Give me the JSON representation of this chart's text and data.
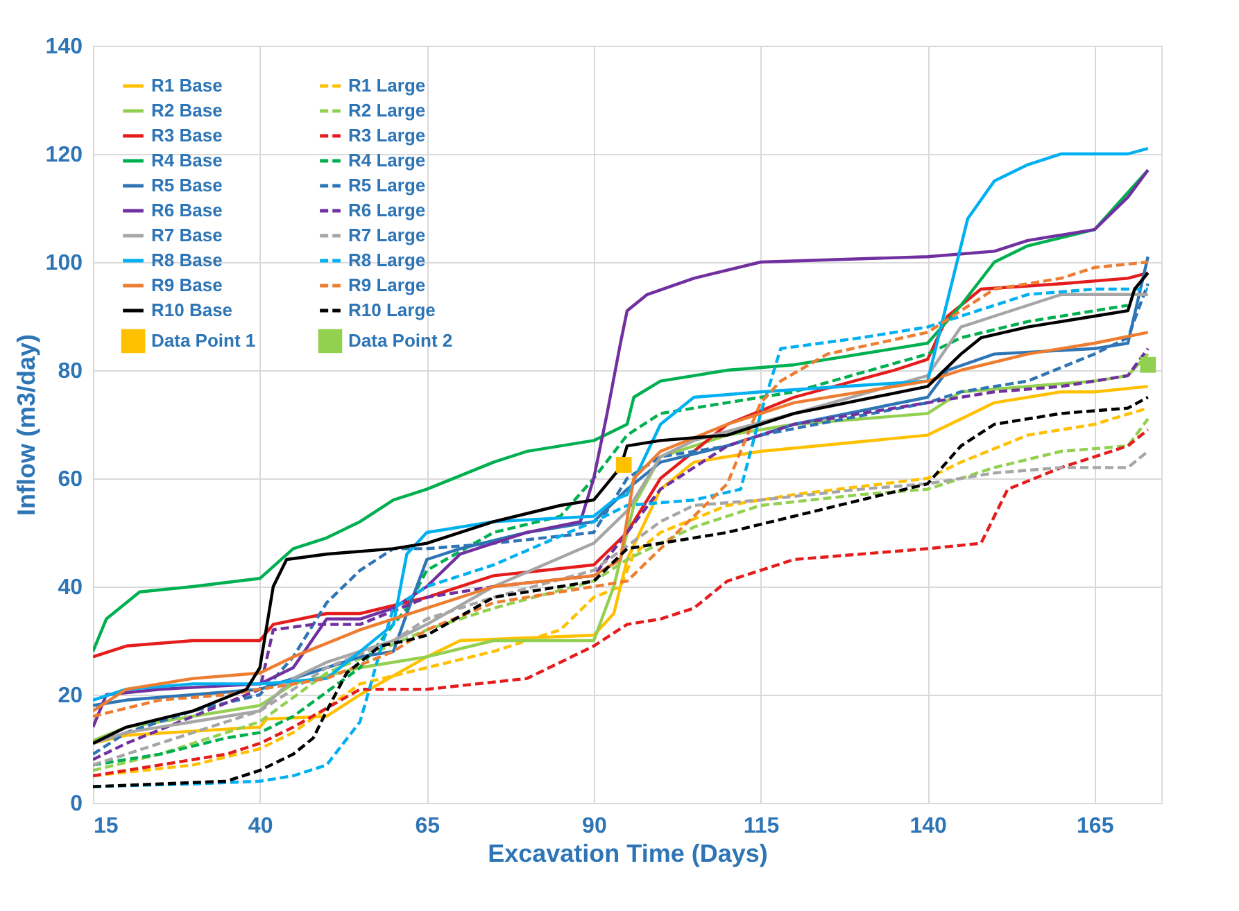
{
  "chart_data": {
    "type": "line",
    "xlabel": "Excavation Time (Days)",
    "ylabel": "Inflow (m3/day)",
    "xlim": [
      15,
      175
    ],
    "xticks": [
      15,
      40,
      65,
      90,
      115,
      140,
      165
    ],
    "ylim": [
      0,
      140
    ],
    "yticks": [
      0,
      20,
      40,
      60,
      80,
      100,
      120,
      140
    ],
    "grid": true,
    "legend": "top left",
    "series": [
      {
        "name": "R1 Base",
        "color": "#ffc000",
        "line_style": "solid",
        "x": [
          15,
          20,
          40,
          41,
          50,
          55,
          65,
          70,
          90,
          93,
          95,
          100,
          105,
          115,
          140,
          145,
          150,
          160,
          165,
          173
        ],
        "values": [
          11,
          12.5,
          14,
          15.5,
          16,
          20,
          27,
          30,
          31,
          35,
          45,
          58,
          63,
          65,
          68,
          71,
          74,
          76,
          76,
          77
        ]
      },
      {
        "name": "R1 Large",
        "color": "#ffc000",
        "line_style": "dashed",
        "x": [
          15,
          30,
          40,
          45,
          55,
          65,
          75,
          85,
          90,
          94,
          96,
          100,
          110,
          120,
          140,
          145,
          155,
          165,
          173
        ],
        "values": [
          5,
          7,
          10,
          13,
          22,
          25,
          28,
          32,
          38,
          40,
          46,
          50,
          55,
          57,
          60,
          63,
          68,
          70,
          73
        ]
      },
      {
        "name": "R2 Base",
        "color": "#92d050",
        "line_style": "solid",
        "x": [
          15,
          20,
          30,
          40,
          45,
          55,
          65,
          75,
          90,
          93,
          96,
          100,
          110,
          120,
          140,
          145,
          155,
          165,
          170,
          173
        ],
        "values": [
          11.5,
          14,
          16,
          18,
          22,
          25,
          27,
          30,
          30,
          40,
          55,
          64,
          68,
          70,
          72,
          76,
          77,
          78,
          79,
          83
        ]
      },
      {
        "name": "R2 Large",
        "color": "#92d050",
        "line_style": "dashed",
        "x": [
          15,
          25,
          40,
          50,
          65,
          75,
          90,
          95,
          105,
          115,
          130,
          140,
          150,
          160,
          170,
          173
        ],
        "values": [
          6,
          9,
          15,
          24,
          32,
          36,
          41,
          45,
          51,
          55,
          57,
          58,
          62,
          65,
          66,
          71
        ]
      },
      {
        "name": "R3 Base",
        "color": "#e41c1c",
        "line_style": "solid",
        "x": [
          15,
          20,
          30,
          40,
          42,
          50,
          55,
          65,
          75,
          90,
          95,
          100,
          110,
          120,
          135,
          140,
          143,
          148,
          160,
          170,
          173
        ],
        "values": [
          27,
          29,
          30,
          30,
          33,
          35,
          35,
          38,
          42,
          44,
          50,
          60,
          70,
          75,
          80,
          82,
          90,
          95,
          96,
          97,
          98
        ]
      },
      {
        "name": "R3 Large",
        "color": "#e41c1c",
        "line_style": "dashed",
        "x": [
          15,
          25,
          35,
          40,
          45,
          55,
          65,
          80,
          90,
          95,
          100,
          105,
          110,
          120,
          140,
          148,
          152,
          160,
          170,
          173
        ],
        "values": [
          5,
          7,
          9,
          11,
          14,
          21,
          21,
          23,
          29,
          33,
          34,
          36,
          41,
          45,
          47,
          48,
          58,
          62,
          66,
          69
        ]
      },
      {
        "name": "R4 Base",
        "color": "#00b050",
        "line_style": "solid",
        "x": [
          15,
          17,
          22,
          30,
          40,
          45,
          50,
          55,
          60,
          65,
          75,
          80,
          90,
          95,
          96,
          100,
          110,
          120,
          140,
          145,
          150,
          155,
          165,
          173
        ],
        "values": [
          28,
          34,
          39,
          40,
          41.5,
          47,
          49,
          52,
          56,
          58,
          63,
          65,
          67,
          70,
          75,
          78,
          80,
          81,
          85,
          92,
          100,
          103,
          106,
          117
        ]
      },
      {
        "name": "R4 Large",
        "color": "#00b050",
        "line_style": "dashed",
        "x": [
          15,
          25,
          35,
          40,
          45,
          55,
          60,
          62,
          65,
          75,
          85,
          90,
          95,
          100,
          110,
          120,
          140,
          145,
          155,
          165,
          170
        ],
        "values": [
          7,
          9,
          12,
          13,
          16,
          25,
          33,
          36,
          43,
          50,
          53,
          60,
          68,
          72,
          74,
          76,
          83,
          86,
          89,
          91,
          92
        ]
      },
      {
        "name": "R5 Base",
        "color": "#2e75b6",
        "line_style": "solid",
        "x": [
          15,
          20,
          30,
          40,
          45,
          55,
          60,
          62,
          65,
          70,
          80,
          90,
          95,
          100,
          110,
          120,
          140,
          143,
          150,
          165,
          170,
          173
        ],
        "values": [
          18,
          19,
          20,
          21,
          23,
          27,
          28,
          35,
          45,
          47,
          50,
          52,
          58,
          63,
          66,
          70,
          75,
          80,
          83,
          84,
          85,
          101
        ]
      },
      {
        "name": "R5 Large",
        "color": "#2e75b6",
        "line_style": "dashed",
        "x": [
          15,
          20,
          30,
          40,
          45,
          50,
          55,
          60,
          65,
          75,
          90,
          95,
          100,
          110,
          115,
          140,
          145,
          155,
          165,
          170,
          173
        ],
        "values": [
          9,
          13,
          17,
          20,
          27,
          37,
          43,
          47,
          47,
          48,
          50,
          60,
          64,
          66,
          68,
          74,
          76,
          78,
          83,
          86,
          96
        ]
      },
      {
        "name": "R6 Base",
        "color": "#7030a0",
        "line_style": "solid",
        "x": [
          15,
          17,
          25,
          40,
          45,
          50,
          55,
          60,
          65,
          70,
          80,
          88,
          90,
          92,
          94,
          95,
          98,
          105,
          115,
          140,
          150,
          155,
          165,
          170,
          173
        ],
        "values": [
          14,
          20,
          21,
          22,
          25,
          34,
          34,
          36,
          40,
          46,
          50,
          52,
          60,
          72,
          85,
          91,
          94,
          97,
          100,
          101,
          102,
          104,
          106,
          112,
          117
        ]
      },
      {
        "name": "R6 Large",
        "color": "#7030a0",
        "line_style": "dashed",
        "x": [
          15,
          20,
          30,
          40,
          42,
          48,
          55,
          65,
          75,
          90,
          95,
          100,
          110,
          120,
          140,
          150,
          160,
          165,
          170,
          173
        ],
        "values": [
          8,
          11,
          16,
          21,
          32,
          33,
          33,
          38,
          40,
          42,
          50,
          58,
          66,
          70,
          74,
          76,
          77,
          78,
          79,
          84
        ]
      },
      {
        "name": "R7 Base",
        "color": "#a6a6a6",
        "line_style": "solid",
        "x": [
          15,
          20,
          30,
          40,
          45,
          50,
          60,
          65,
          75,
          90,
          95,
          100,
          105,
          120,
          140,
          145,
          150,
          160,
          170,
          173
        ],
        "values": [
          11,
          13,
          15,
          17,
          23,
          26,
          30,
          33,
          40,
          48,
          54,
          64,
          67,
          72,
          79,
          88,
          90,
          94,
          94,
          94
        ]
      },
      {
        "name": "R7 Large",
        "color": "#a6a6a6",
        "line_style": "dashed",
        "x": [
          15,
          25,
          35,
          40,
          50,
          60,
          65,
          75,
          90,
          100,
          105,
          115,
          130,
          140,
          150,
          160,
          170,
          173
        ],
        "values": [
          7,
          11,
          15,
          17,
          25,
          30,
          34,
          38,
          43,
          52,
          55,
          56,
          58,
          59,
          61,
          62,
          62,
          65
        ]
      },
      {
        "name": "R8 Base",
        "color": "#00b0f0",
        "line_style": "solid",
        "x": [
          15,
          20,
          30,
          40,
          50,
          55,
          60,
          62,
          65,
          75,
          90,
          93,
          95,
          100,
          105,
          115,
          140,
          142,
          144,
          146,
          150,
          155,
          160,
          165,
          170,
          173
        ],
        "values": [
          19,
          21,
          22,
          22,
          23,
          28,
          33,
          46,
          50,
          52,
          53,
          56,
          57,
          70,
          75,
          76,
          78,
          88,
          98,
          108,
          115,
          118,
          120,
          120,
          120,
          121
        ]
      },
      {
        "name": "R8 Large",
        "color": "#00b0f0",
        "line_style": "dashed",
        "x": [
          15,
          30,
          40,
          45,
          50,
          55,
          58,
          60,
          65,
          75,
          90,
          95,
          105,
          112,
          115,
          118,
          130,
          140,
          145,
          155,
          165,
          173
        ],
        "values": [
          3,
          3.5,
          4,
          5,
          7,
          15,
          28,
          36,
          40,
          44,
          52,
          55,
          56,
          58,
          72,
          84,
          86,
          88,
          90,
          94,
          95,
          95
        ]
      },
      {
        "name": "R9 Base",
        "color": "#ed7d31",
        "line_style": "solid",
        "x": [
          15,
          20,
          30,
          40,
          45,
          55,
          65,
          75,
          90,
          94,
          96,
          100,
          110,
          120,
          140,
          145,
          155,
          165,
          173
        ],
        "values": [
          17,
          21,
          23,
          24,
          27,
          32,
          36,
          40,
          42,
          45,
          60,
          65,
          70,
          74,
          78,
          80,
          83,
          85,
          87
        ]
      },
      {
        "name": "R9 Large",
        "color": "#ed7d31",
        "line_style": "dashed",
        "x": [
          15,
          25,
          35,
          40,
          50,
          60,
          65,
          75,
          90,
          95,
          100,
          105,
          110,
          115,
          118,
          125,
          140,
          150,
          160,
          165,
          173
        ],
        "values": [
          16,
          19,
          20,
          21,
          23,
          28,
          32,
          37,
          40,
          41,
          47,
          53,
          59,
          74,
          78,
          83,
          87,
          95,
          97,
          99,
          100
        ]
      },
      {
        "name": "R10 Base",
        "color": "#000000",
        "line_style": "solid",
        "x": [
          15,
          20,
          30,
          38,
          40,
          42,
          44,
          50,
          60,
          65,
          75,
          85,
          90,
          94,
          95,
          100,
          110,
          120,
          140,
          145,
          148,
          155,
          165,
          170,
          171,
          173
        ],
        "values": [
          11,
          14,
          17,
          21,
          25,
          40,
          45,
          46,
          47,
          48,
          52,
          55,
          56,
          62,
          66,
          67,
          68,
          72,
          77,
          83,
          86,
          88,
          90,
          91,
          95,
          98
        ]
      },
      {
        "name": "R10 Large",
        "color": "#000000",
        "line_style": "dashed",
        "x": [
          15,
          25,
          35,
          40,
          45,
          48,
          50,
          53,
          58,
          62,
          65,
          75,
          90,
          95,
          105,
          110,
          120,
          140,
          145,
          150,
          160,
          170,
          173
        ],
        "values": [
          3,
          3.5,
          4,
          6,
          9,
          12,
          17,
          24,
          29,
          30,
          31,
          38,
          41,
          47,
          49,
          50,
          53,
          59,
          66,
          70,
          72,
          73,
          75
        ]
      },
      {
        "name": "Data Point 1",
        "type": "scatter",
        "marker": "square",
        "color": "#ffc000",
        "x": [
          94.5
        ],
        "values": [
          62.5
        ]
      },
      {
        "name": "Data Point 2",
        "type": "scatter",
        "marker": "square",
        "color": "#92d050",
        "x": [
          173
        ],
        "values": [
          81
        ]
      }
    ]
  }
}
